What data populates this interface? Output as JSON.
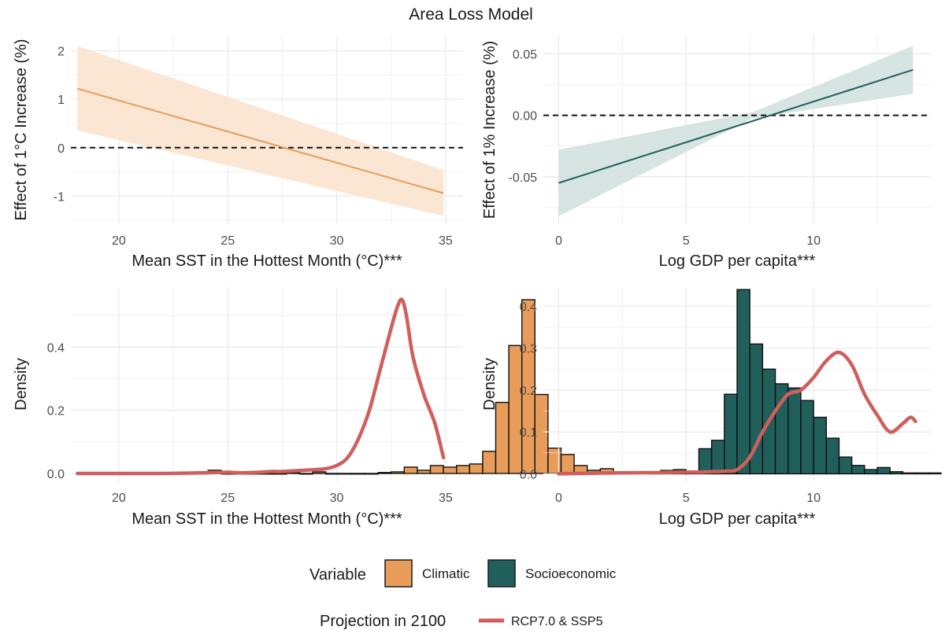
{
  "title": "Area Loss Model",
  "colors": {
    "climatic": "#e89c5a",
    "climatic_band": "#fbe3cf",
    "socio": "#215f5b",
    "socio_band": "#d3e2df",
    "projection": "#cf5f5c",
    "grid": "#ebebeb",
    "axis_text": "#4d4d4d"
  },
  "legend": {
    "variable_title": "Variable",
    "variable_items": [
      "Climatic",
      "Socioeconomic"
    ],
    "projection_title": "Projection in 2100",
    "projection_label": "RCP7.0 & SSP5"
  },
  "chart_data": [
    {
      "id": "sst_effect",
      "type": "line",
      "xlabel": "Mean SST in the Hottest Month (°C)***",
      "ylabel": "Effect of 1°C Increase (%)",
      "xlim": [
        17.8,
        35.8
      ],
      "ylim": [
        -1.58,
        2.32
      ],
      "xticks": [
        20,
        25,
        30,
        35
      ],
      "yticks": [
        -1,
        0,
        1,
        2
      ],
      "ytick_labels": [
        "-1",
        "0",
        "1",
        "2"
      ],
      "line": {
        "x": [
          18.1,
          34.9
        ],
        "y": [
          1.22,
          -0.94
        ]
      },
      "band": {
        "x": [
          18.1,
          34.9
        ],
        "lower": [
          0.36,
          -1.41
        ],
        "upper": [
          2.1,
          -0.46
        ]
      },
      "hline": 0
    },
    {
      "id": "gdp_effect",
      "type": "line",
      "xlabel": "Log GDP per capita***",
      "ylabel": "Effect of 1% Increase (%)",
      "xlim": [
        -0.6,
        14.6
      ],
      "ylim": [
        -0.0885,
        0.065
      ],
      "xticks": [
        0,
        5,
        10
      ],
      "yticks": [
        -0.05,
        0,
        0.05
      ],
      "ytick_labels": [
        "-0.05",
        "0.00",
        "0.05"
      ],
      "line": {
        "x": [
          0,
          13.9
        ],
        "y": [
          -0.055,
          0.037
        ]
      },
      "band": {
        "x": [
          0,
          7.6,
          13.9
        ],
        "lower": [
          -0.082,
          -0.0025,
          0.0175
        ],
        "upper": [
          -0.028,
          0.0025,
          0.0565
        ]
      },
      "hline": 0
    },
    {
      "id": "sst_density",
      "type": "bar",
      "xlabel": "Mean SST in the Hottest Month (°C)***",
      "ylabel": "Density",
      "xlim": [
        17.8,
        35.8
      ],
      "ylim": [
        -0.025,
        0.59
      ],
      "xticks": [
        20,
        25,
        30,
        35
      ],
      "yticks": [
        0,
        0.2,
        0.4
      ],
      "ytick_labels": [
        "0.0",
        "0.2",
        "0.4"
      ],
      "bin_width": 0.6,
      "bin_start": 18.1,
      "values": [
        0,
        0,
        0,
        0,
        0,
        0,
        0,
        0,
        0,
        0.005,
        0.01,
        0,
        0,
        0,
        0,
        0,
        0.002,
        0,
        0.005,
        0,
        0,
        0,
        0,
        0.003,
        0.005,
        0.02,
        0.01,
        0.025,
        0.02,
        0.025,
        0.03,
        0.07,
        0.225,
        0.405,
        0.55,
        0.25,
        0.08,
        0.06,
        0.025,
        0.01,
        0.015,
        0.005,
        0.005,
        0.002,
        0.001
      ],
      "series": [
        {
          "name": "RCP7.0 & SSP5",
          "x": [
            18.1,
            20,
            22,
            24,
            25,
            25.5,
            26.5,
            27,
            27.5,
            28,
            28.5,
            29,
            29.5,
            30,
            30.5,
            31,
            31.5,
            32,
            32.5,
            32.8,
            33,
            33.2,
            33.5,
            34,
            34.5,
            34.9
          ],
          "y": [
            0,
            0,
            0,
            0.002,
            0.004,
            0.002,
            0.004,
            0.006,
            0.006,
            0.008,
            0.01,
            0.012,
            0.015,
            0.025,
            0.05,
            0.11,
            0.2,
            0.33,
            0.46,
            0.53,
            0.55,
            0.5,
            0.37,
            0.25,
            0.16,
            0.05
          ]
        }
      ]
    },
    {
      "id": "gdp_density",
      "type": "bar",
      "xlabel": "Log GDP per capita***",
      "ylabel": "Density",
      "xlim": [
        -0.6,
        14.6
      ],
      "ylim": [
        -0.018,
        0.446
      ],
      "xticks": [
        0,
        5,
        10
      ],
      "yticks": [
        0,
        0.1,
        0.2,
        0.3,
        0.4
      ],
      "ytick_labels": [
        "0.0",
        "0.1",
        "0.2",
        "0.3",
        "0.4"
      ],
      "bin_width": 0.5,
      "bin_start": 3.5,
      "values": [
        0.002,
        0.008,
        0.01,
        0.006,
        0.06,
        0.08,
        0.19,
        0.44,
        0.31,
        0.25,
        0.215,
        0.205,
        0.175,
        0.135,
        0.085,
        0.04,
        0.02,
        0.01,
        0.015,
        0.005,
        0.002,
        0.002,
        0.002
      ],
      "series": [
        {
          "name": "RCP7.0 & SSP5",
          "x": [
            0,
            2,
            4,
            5,
            5.5,
            6,
            6.5,
            7,
            7.5,
            8,
            8.5,
            9,
            9.5,
            10,
            10.5,
            11,
            11.5,
            12,
            12.5,
            13,
            13.5,
            13.8,
            14
          ],
          "y": [
            0,
            0.002,
            0.003,
            0.004,
            0.004,
            0.005,
            0.006,
            0.01,
            0.04,
            0.1,
            0.15,
            0.19,
            0.2,
            0.23,
            0.27,
            0.29,
            0.26,
            0.19,
            0.14,
            0.1,
            0.12,
            0.135,
            0.125
          ]
        }
      ]
    }
  ]
}
